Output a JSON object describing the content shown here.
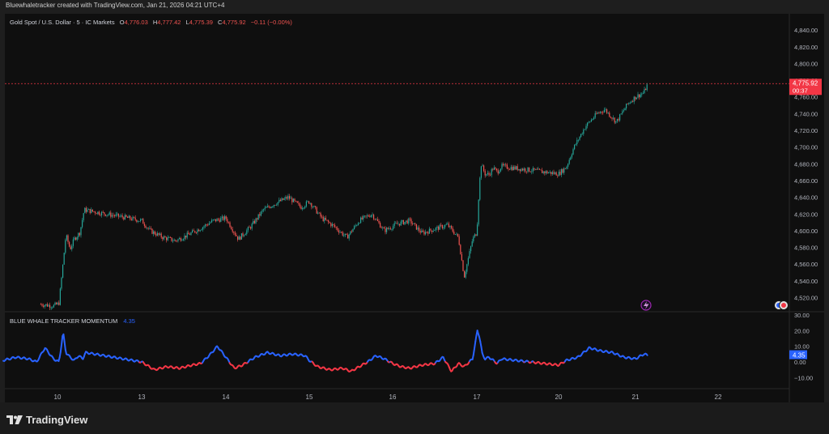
{
  "credit": "Bluewhaletracker created with TradingView.com, Jan 21, 2026 04:21 UTC+4",
  "brand": "TradingView",
  "legend": {
    "symbol": "Gold Spot / U.S. Dollar · 5 · IC Markets",
    "o_label": "O",
    "o_value": "4,776.03",
    "h_label": "H",
    "h_value": "4,777.42",
    "l_label": "L",
    "l_value": "4,775.39",
    "c_label": "C",
    "c_value": "4,775.92",
    "change": "−0.11 (−0.00%)"
  },
  "price_badge": {
    "value": "4,775.92",
    "countdown": "00:37"
  },
  "indicator": {
    "name": "BLUE WHALE TRACKER MOMENTUM",
    "value": "4.35"
  },
  "colors": {
    "background": "#0f0f0f",
    "up": "#26a69a",
    "down": "#ef5350",
    "momentum_up": "#2962ff",
    "momentum_down": "#f23645",
    "price_line": "#f23645",
    "indicator_value": "#2962ff"
  },
  "chart_data": [
    {
      "type": "candlestick",
      "title": "Gold Spot / U.S. Dollar · 5 · IC Markets",
      "x_ticks": [
        "10",
        "13",
        "14",
        "15",
        "16",
        "17",
        "20",
        "21",
        "22"
      ],
      "y_ticks": [
        "4,520.00",
        "4,540.00",
        "4,560.00",
        "4,580.00",
        "4,600.00",
        "4,620.00",
        "4,640.00",
        "4,660.00",
        "4,680.00",
        "4,700.00",
        "4,720.00",
        "4,740.00",
        "4,760.00",
        "4,780.00",
        "4,800.00",
        "4,820.00",
        "4,840.00"
      ],
      "ylim": [
        4505,
        4850
      ],
      "grid": false,
      "last_price": 4775.92,
      "series": [
        {
          "name": "close",
          "x": [
            9.8,
            9.95,
            10.05,
            10.15,
            10.3,
            10.45,
            10.6,
            10.8,
            10.95,
            13.0,
            13.1,
            13.25,
            13.4,
            13.55,
            13.7,
            13.85,
            14.0,
            14.15,
            14.3,
            14.45,
            14.6,
            14.75,
            14.9,
            15.0,
            15.15,
            15.3,
            15.45,
            15.6,
            15.75,
            15.9,
            16.05,
            16.2,
            16.35,
            16.5,
            16.65,
            16.78,
            16.85,
            16.95,
            17.0,
            17.05,
            17.15,
            17.3,
            17.45,
            17.6,
            17.75,
            17.9,
            20.0,
            20.1,
            20.2,
            20.35,
            20.5,
            20.6,
            20.75,
            20.9,
            21.0,
            21.1,
            21.15
          ],
          "values": [
            4512,
            4510,
            4513,
            4545,
            4595,
            4578,
            4590,
            4598,
            4625,
            4612,
            4600,
            4592,
            4588,
            4595,
            4603,
            4612,
            4615,
            4590,
            4605,
            4625,
            4633,
            4640,
            4628,
            4635,
            4615,
            4605,
            4592,
            4612,
            4620,
            4600,
            4608,
            4612,
            4597,
            4602,
            4607,
            4592,
            4545,
            4590,
            4598,
            4632,
            4680,
            4668,
            4667,
            4675,
            4670,
            4677,
            4668,
            4676,
            4700,
            4725,
            4740,
            4745,
            4730,
            4752,
            4760,
            4765,
            4776
          ]
        }
      ]
    },
    {
      "type": "line",
      "title": "BLUE WHALE TRACKER MOMENTUM",
      "y_ticks": [
        "−10.00",
        "0.00",
        "10.00",
        "20.00",
        "30.00"
      ],
      "ylim": [
        -14,
        32
      ],
      "last_value": 4.35,
      "series": [
        {
          "name": "BLUE WHALE TRACKER MOMENTUM",
          "x": [
            9.35,
            9.5,
            9.65,
            9.75,
            9.85,
            9.95,
            10.05,
            10.12,
            10.2,
            10.3,
            10.45,
            10.6,
            10.75,
            10.9,
            11.0,
            13.0,
            13.15,
            13.3,
            13.45,
            13.6,
            13.7,
            13.8,
            13.9,
            14.0,
            14.1,
            14.2,
            14.35,
            14.5,
            14.65,
            14.8,
            14.95,
            15.0,
            15.1,
            15.25,
            15.4,
            15.5,
            15.6,
            15.7,
            15.8,
            15.9,
            16.0,
            16.1,
            16.2,
            16.35,
            16.5,
            16.6,
            16.7,
            16.78,
            16.85,
            16.95,
            17.02,
            17.1,
            17.2,
            17.3,
            17.45,
            17.6,
            17.75,
            17.9,
            20.0,
            20.1,
            20.25,
            20.4,
            20.55,
            20.7,
            20.85,
            21.0,
            21.1,
            21.15
          ],
          "values": [
            1,
            3,
            2,
            0,
            9,
            2,
            0,
            8,
            19,
            6,
            3,
            1,
            4,
            2,
            6,
            0,
            -5,
            -3,
            -4,
            -2,
            -1,
            4,
            10,
            3,
            -4,
            -2,
            3,
            6,
            4,
            5,
            4,
            1,
            -3,
            -5,
            -4,
            -6,
            -3,
            0,
            4,
            2,
            -1,
            -3,
            -4,
            -2,
            -1,
            3,
            -6,
            -1,
            -3,
            2,
            20,
            16,
            5,
            2,
            3,
            1,
            -1,
            2,
            -2,
            1,
            3,
            9,
            7,
            6,
            3,
            2,
            5,
            4.35
          ]
        }
      ]
    }
  ]
}
